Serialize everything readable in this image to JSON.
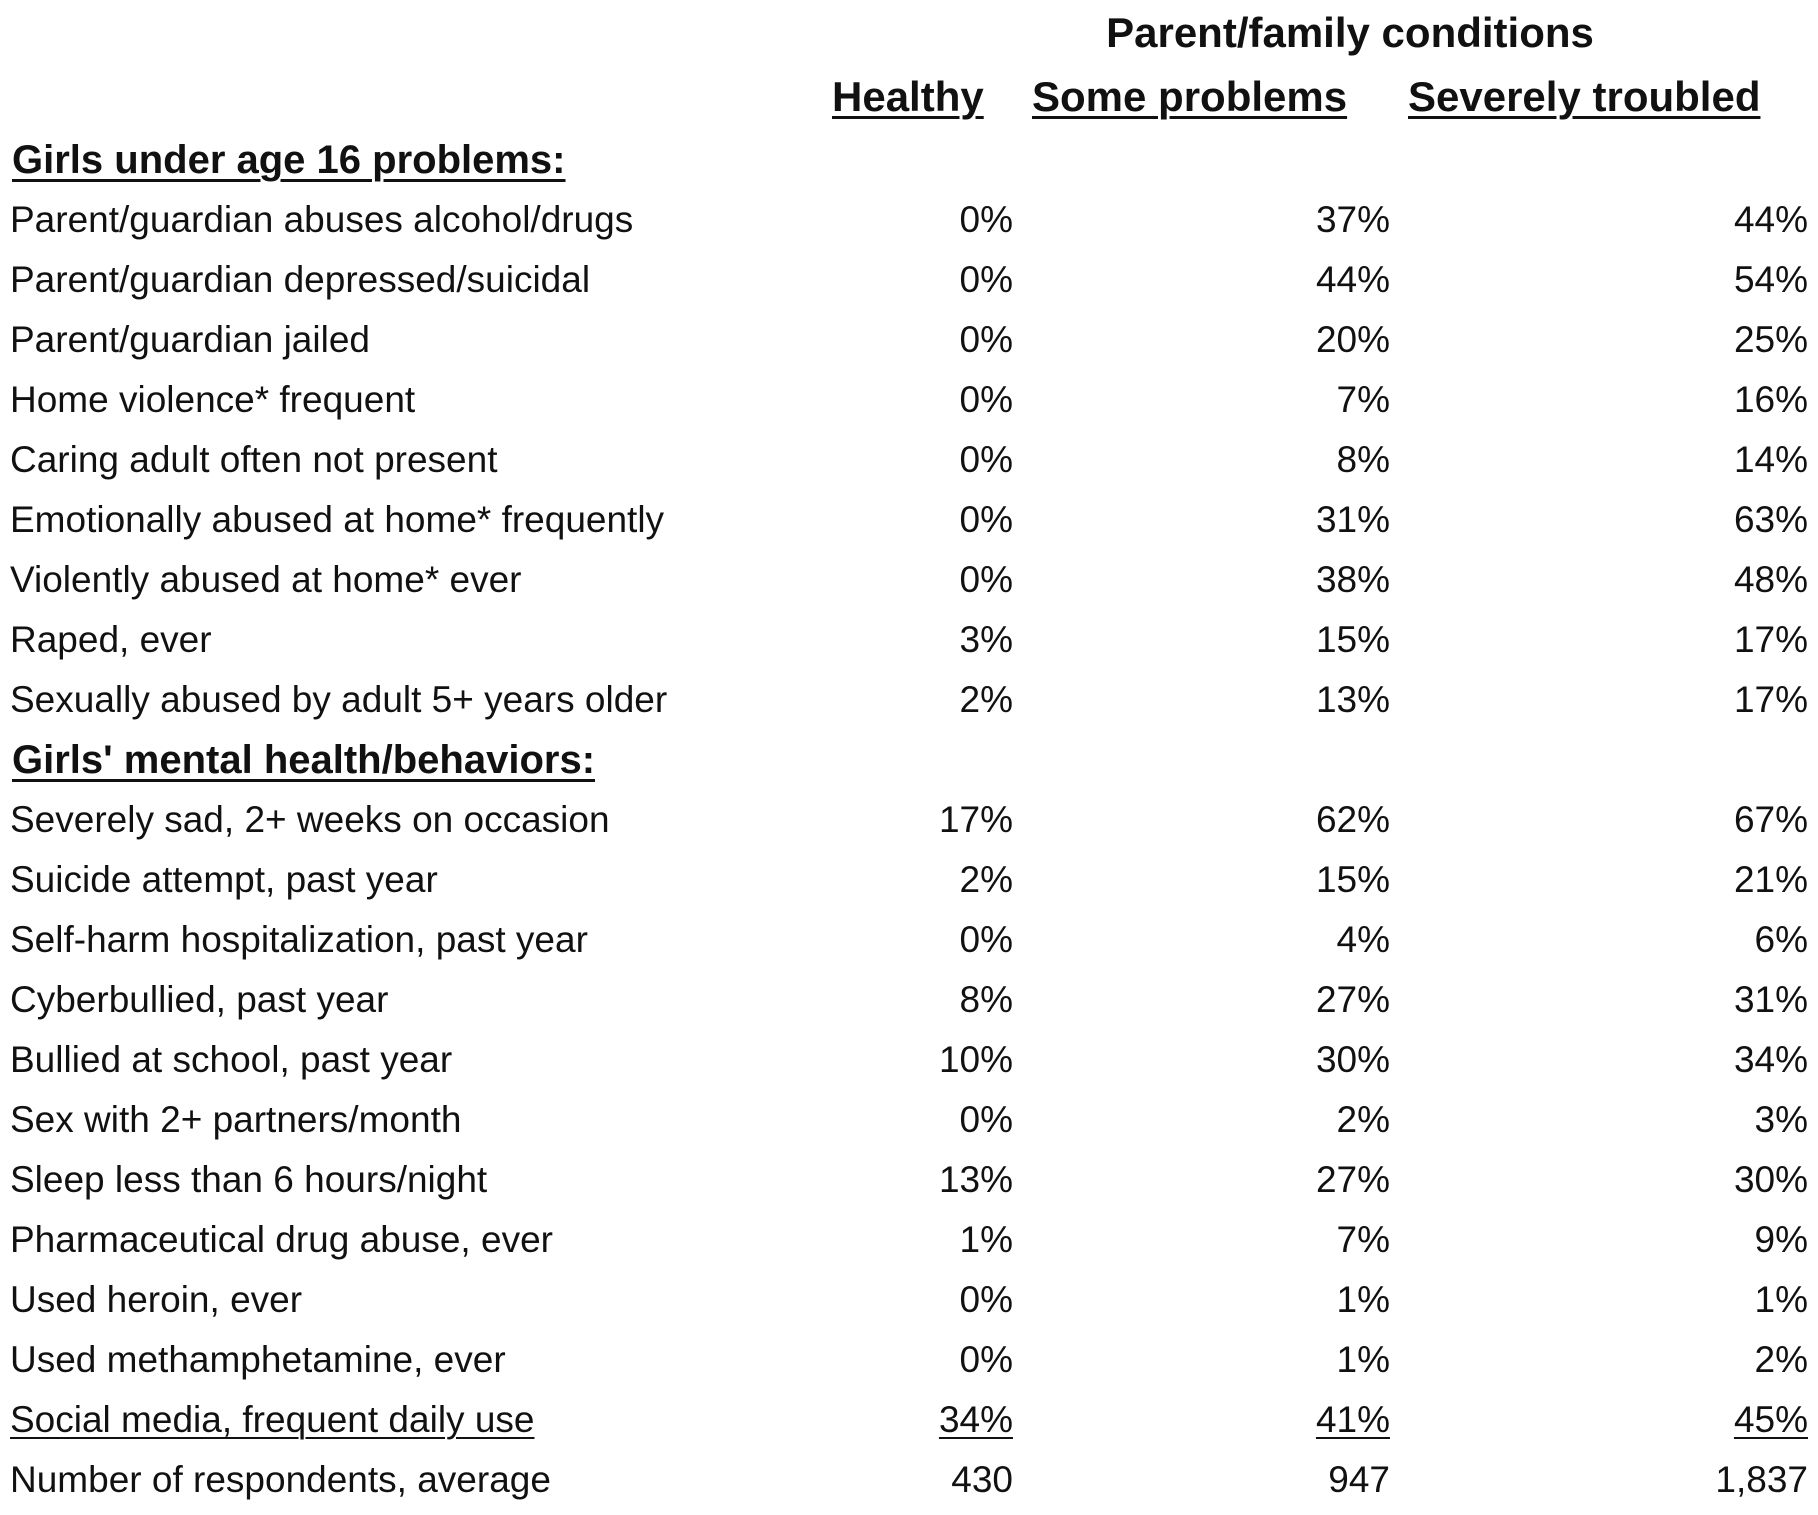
{
  "header": {
    "super_title": "Parent/family conditions",
    "columns": [
      "Healthy",
      "Some problems",
      "Severely troubled"
    ]
  },
  "sections": [
    {
      "title": "Girls under age 16 problems:",
      "rows": [
        {
          "label": "Parent/guardian abuses alcohol/drugs",
          "healthy": "0%",
          "some": "37%",
          "severe": "44%"
        },
        {
          "label": "Parent/guardian depressed/suicidal",
          "healthy": "0%",
          "some": "44%",
          "severe": "54%"
        },
        {
          "label": "Parent/guardian jailed",
          "healthy": "0%",
          "some": "20%",
          "severe": "25%"
        },
        {
          "label": "Home violence* frequent",
          "healthy": "0%",
          "some": "7%",
          "severe": "16%"
        },
        {
          "label": "Caring adult often not present",
          "healthy": "0%",
          "some": "8%",
          "severe": "14%"
        },
        {
          "label": "Emotionally abused at home* frequently",
          "healthy": "0%",
          "some": "31%",
          "severe": "63%"
        },
        {
          "label": "Violently abused at home* ever",
          "healthy": "0%",
          "some": "38%",
          "severe": "48%"
        },
        {
          "label": "Raped, ever",
          "healthy": "3%",
          "some": "15%",
          "severe": "17%"
        },
        {
          "label": "Sexually abused by adult 5+ years older",
          "healthy": "2%",
          "some": "13%",
          "severe": "17%"
        }
      ]
    },
    {
      "title": "Girls' mental health/behaviors:",
      "rows": [
        {
          "label": "Severely sad, 2+ weeks on occasion",
          "healthy": "17%",
          "some": "62%",
          "severe": "67%"
        },
        {
          "label": "Suicide attempt, past year",
          "healthy": "2%",
          "some": "15%",
          "severe": "21%"
        },
        {
          "label": "Self-harm hospitalization, past year",
          "healthy": "0%",
          "some": "4%",
          "severe": "6%"
        },
        {
          "label": "Cyberbullied, past year",
          "healthy": "8%",
          "some": "27%",
          "severe": "31%"
        },
        {
          "label": "Bullied at school, past year",
          "healthy": "10%",
          "some": "30%",
          "severe": "34%"
        },
        {
          "label": "Sex with 2+ partners/month",
          "healthy": "0%",
          "some": "2%",
          "severe": "3%"
        },
        {
          "label": "Sleep less than 6 hours/night",
          "healthy": "13%",
          "some": "27%",
          "severe": "30%"
        },
        {
          "label": "Pharmaceutical drug abuse, ever",
          "healthy": "1%",
          "some": "7%",
          "severe": "9%"
        },
        {
          "label": "Used heroin, ever",
          "healthy": "0%",
          "some": "1%",
          "severe": "1%"
        },
        {
          "label": "Used methamphetamine, ever",
          "healthy": "0%",
          "some": "1%",
          "severe": "2%"
        },
        {
          "label": "Social media, frequent daily use",
          "healthy": "34%",
          "some": "41%",
          "severe": "45%"
        },
        {
          "label": "Number of respondents, average",
          "healthy": "430",
          "some": "947",
          "severe": "1,837"
        }
      ]
    }
  ]
}
